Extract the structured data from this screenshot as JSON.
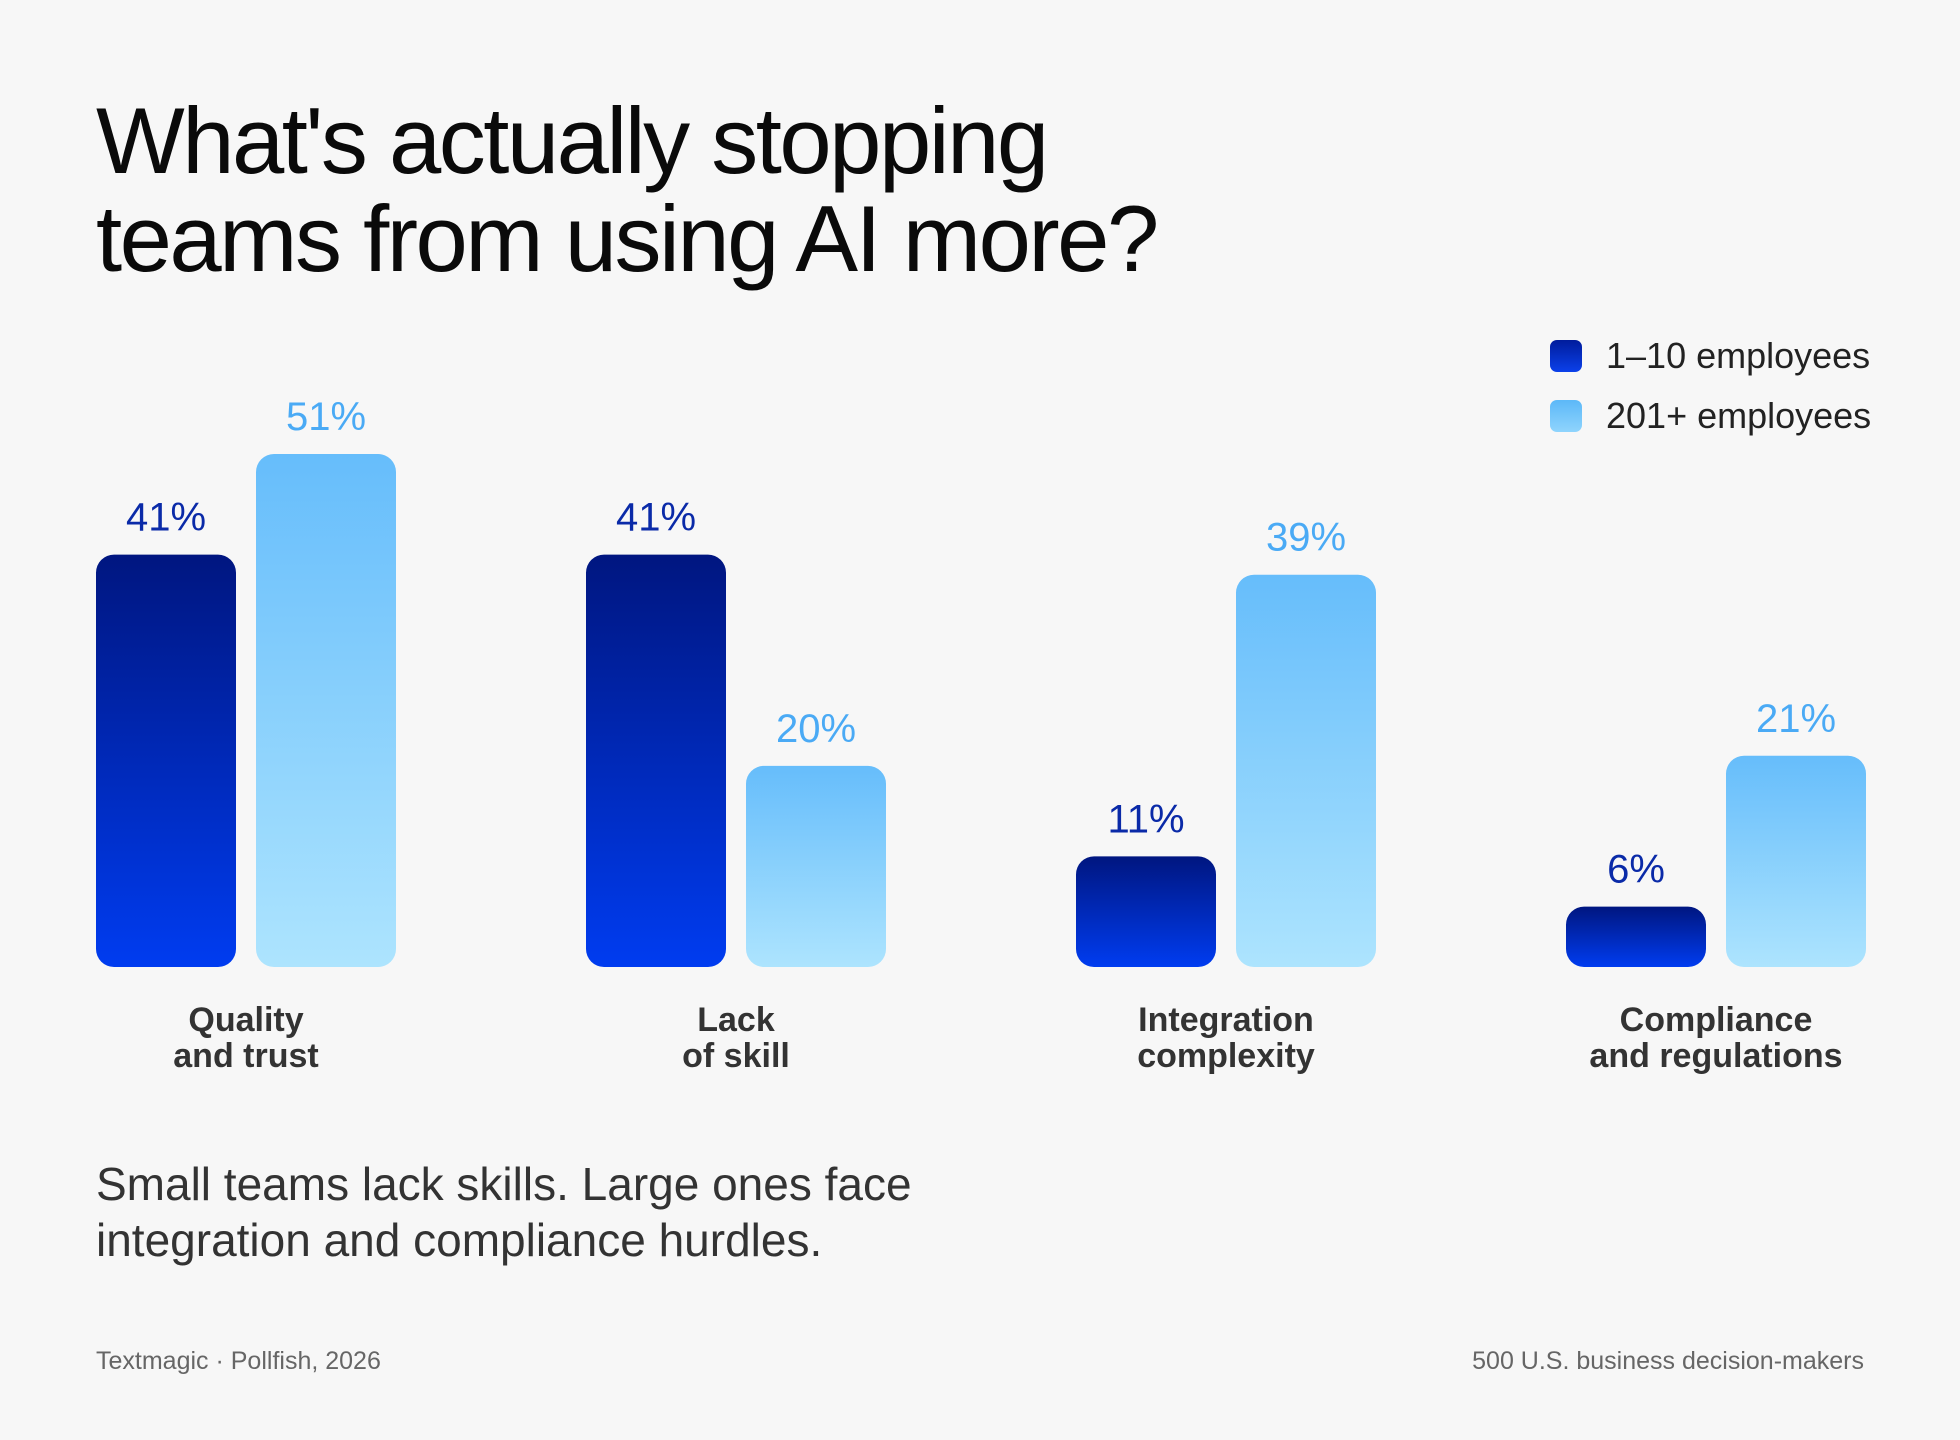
{
  "title_lines": [
    "What's actually stopping",
    "teams from using AI more?"
  ],
  "takeaway_lines": [
    "Small teams lack skills. Large ones face",
    "integration and compliance hurdles."
  ],
  "source": "Textmagic · Pollfish, 2026",
  "sample": "500 U.S. business decision-makers",
  "colors": {
    "small_top": "#001680",
    "small_bottom": "#003cf0",
    "small_label": "#0a2aa8",
    "large_top": "#66bdfb",
    "large_bottom": "#ade4fe",
    "large_label": "#4aaaf5"
  },
  "chart_data": {
    "type": "bar",
    "categories": [
      [
        "Quality",
        "and trust"
      ],
      [
        "Lack",
        "of skill"
      ],
      [
        "Integration",
        "complexity"
      ],
      [
        "Compliance",
        "and regulations"
      ]
    ],
    "series": [
      {
        "name": "1–10 employees",
        "values": [
          41,
          41,
          11,
          6
        ],
        "labels": [
          "41%",
          "41%",
          "11%",
          "6%"
        ]
      },
      {
        "name": "201+ employees",
        "values": [
          51,
          20,
          39,
          21
        ],
        "labels": [
          "51%",
          "20%",
          "39%",
          "21%"
        ]
      }
    ],
    "ylim": [
      0,
      51
    ],
    "legend": "top-right",
    "grid": false,
    "xlabel": "",
    "ylabel": ""
  }
}
